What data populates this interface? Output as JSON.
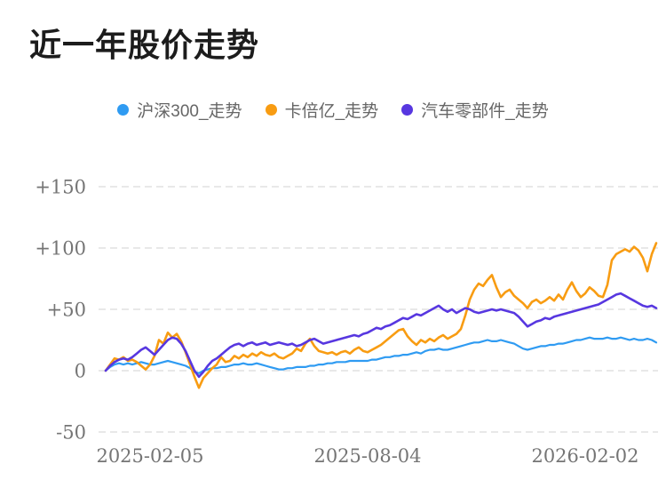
{
  "title": "近一年股价走势",
  "legend": [
    {
      "label": "沪深300_走势",
      "color": "#2f9bf2"
    },
    {
      "label": "卡倍亿_走势",
      "color": "#f89c12"
    },
    {
      "label": "汽车零部件_走势",
      "color": "#5737e0"
    }
  ],
  "chart_data": {
    "type": "line",
    "title": "近一年股价走势",
    "legend_position": "top-center",
    "grid": "dashed horizontal lines",
    "ylim": [
      -50,
      150
    ],
    "yticks": [
      {
        "value": -50,
        "label": "-50"
      },
      {
        "value": 0,
        "label": "0"
      },
      {
        "value": 50,
        "label": "+50"
      },
      {
        "value": 100,
        "label": "+100"
      },
      {
        "value": 150,
        "label": "+150"
      }
    ],
    "xticks": [
      {
        "label": "2025-02-05",
        "index": 10
      },
      {
        "label": "2025-08-04",
        "index": 59
      },
      {
        "label": "2026-02-02",
        "index": 108
      }
    ],
    "series": [
      {
        "name": "沪深300_走势",
        "color": "#2f9bf2",
        "width": 2.2,
        "values": [
          0,
          3,
          5,
          6,
          5,
          6,
          5,
          6,
          7,
          6,
          5,
          5,
          6,
          7,
          8,
          7,
          6,
          5,
          4,
          2,
          -1,
          -2,
          0,
          1,
          2,
          2,
          3,
          3,
          4,
          5,
          5,
          6,
          5,
          5,
          6,
          5,
          4,
          3,
          2,
          1,
          1,
          2,
          2,
          3,
          3,
          3,
          4,
          4,
          5,
          5,
          6,
          6,
          7,
          7,
          7,
          8,
          8,
          8,
          8,
          8,
          9,
          9,
          10,
          11,
          11,
          12,
          12,
          13,
          13,
          14,
          15,
          14,
          16,
          17,
          17,
          18,
          17,
          17,
          18,
          19,
          20,
          21,
          22,
          23,
          23,
          24,
          25,
          24,
          24,
          25,
          24,
          23,
          22,
          20,
          18,
          17,
          18,
          19,
          20,
          20,
          21,
          21,
          22,
          22,
          23,
          24,
          25,
          25,
          26,
          27,
          26,
          26,
          26,
          27,
          26,
          26,
          27,
          26,
          25,
          26,
          25,
          25,
          26,
          25,
          23
        ]
      },
      {
        "name": "卡倍亿_走势",
        "color": "#f89c12",
        "width": 2.6,
        "values": [
          0,
          5,
          10,
          9,
          11,
          8,
          9,
          7,
          4,
          1,
          5,
          12,
          25,
          22,
          31,
          27,
          30,
          24,
          15,
          5,
          -5,
          -14,
          -6,
          -2,
          2,
          5,
          11,
          7,
          8,
          12,
          10,
          13,
          11,
          14,
          12,
          15,
          13,
          12,
          14,
          11,
          10,
          12,
          14,
          18,
          16,
          22,
          26,
          20,
          16,
          15,
          14,
          15,
          13,
          15,
          16,
          14,
          17,
          19,
          16,
          15,
          17,
          19,
          21,
          24,
          27,
          30,
          33,
          34,
          28,
          24,
          21,
          25,
          23,
          26,
          24,
          27,
          29,
          26,
          28,
          30,
          34,
          45,
          58,
          66,
          71,
          69,
          74,
          78,
          68,
          60,
          64,
          66,
          61,
          58,
          55,
          51,
          56,
          58,
          55,
          57,
          60,
          57,
          62,
          58,
          66,
          72,
          65,
          60,
          63,
          68,
          65,
          61,
          60,
          70,
          90,
          95,
          97,
          99,
          97,
          101,
          98,
          92,
          81,
          95,
          104
        ]
      },
      {
        "name": "汽车零部件_走势",
        "color": "#5737e0",
        "width": 2.6,
        "values": [
          0,
          4,
          7,
          9,
          10,
          9,
          11,
          14,
          17,
          19,
          16,
          13,
          17,
          21,
          25,
          27,
          26,
          22,
          16,
          8,
          0,
          -5,
          -1,
          4,
          8,
          10,
          13,
          16,
          19,
          21,
          22,
          20,
          22,
          23,
          21,
          22,
          23,
          21,
          22,
          23,
          22,
          21,
          22,
          20,
          21,
          23,
          25,
          26,
          24,
          22,
          23,
          24,
          25,
          26,
          27,
          28,
          29,
          28,
          30,
          31,
          33,
          35,
          34,
          36,
          37,
          39,
          41,
          43,
          42,
          44,
          46,
          45,
          47,
          49,
          51,
          53,
          50,
          48,
          50,
          47,
          49,
          51,
          50,
          48,
          47,
          48,
          49,
          50,
          49,
          50,
          49,
          48,
          47,
          44,
          40,
          36,
          38,
          40,
          41,
          43,
          42,
          44,
          45,
          46,
          47,
          48,
          49,
          50,
          51,
          52,
          53,
          54,
          56,
          58,
          60,
          62,
          63,
          61,
          59,
          57,
          55,
          53,
          52,
          53,
          51
        ]
      }
    ],
    "style": {
      "grid_color": "#e8e8e8",
      "axis_label_color": "#757575",
      "legend_text_color": "#666666",
      "title_color": "#1c1c1c"
    }
  }
}
